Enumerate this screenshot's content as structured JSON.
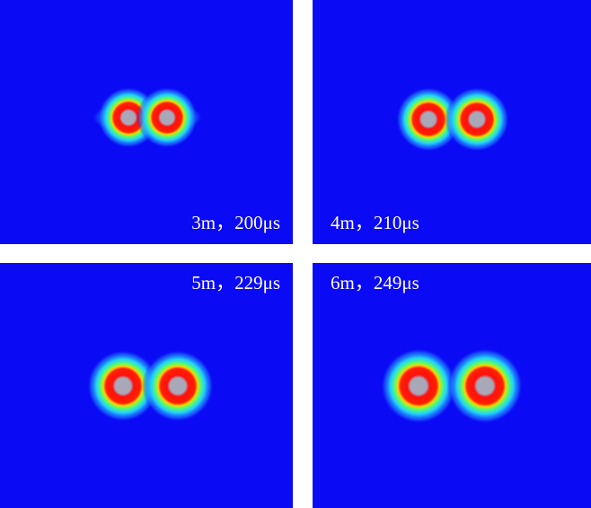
{
  "panels": [
    {
      "label": "3m，200μs"
    },
    {
      "label": "4m，210μs"
    },
    {
      "label": "5m，229μs"
    },
    {
      "label": "6m，249μs"
    }
  ]
}
